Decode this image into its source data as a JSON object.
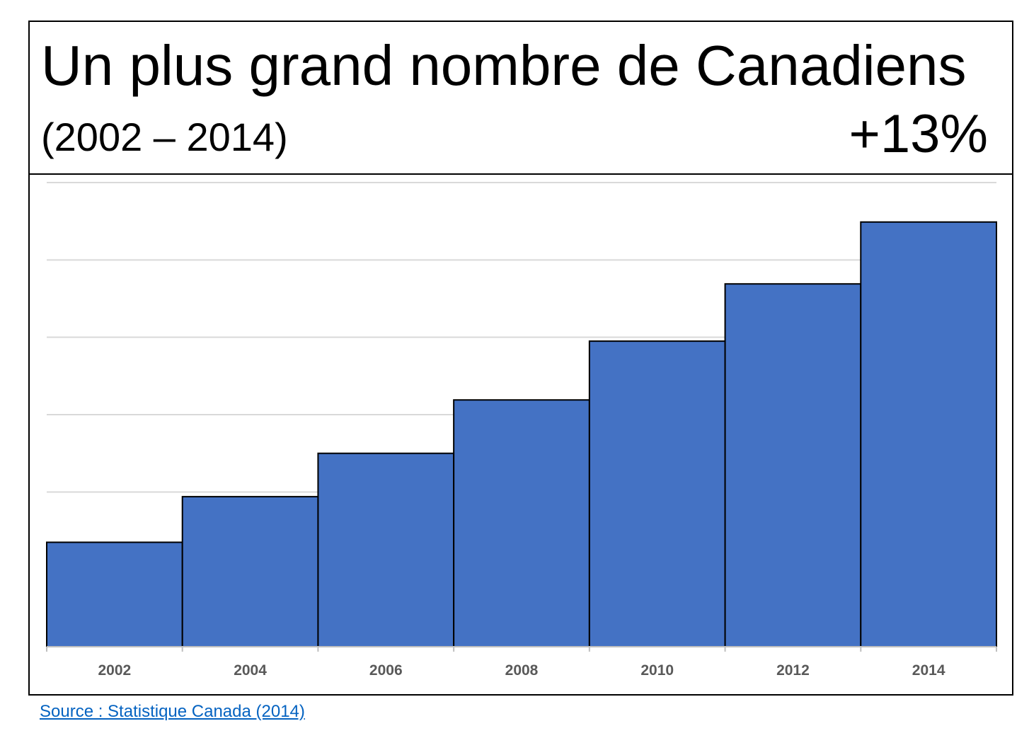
{
  "header": {
    "title": "Un plus grand nombre de Canadiens",
    "subtitle": "(2002 – 2014)",
    "change": "+13%"
  },
  "source": {
    "label": "Source : Statistique Canada (2014)"
  },
  "chart_data": {
    "type": "bar",
    "title": "Un plus grand nombre de Canadiens",
    "subtitle": "(2002 – 2014)",
    "categories": [
      "2002",
      "2004",
      "2006",
      "2008",
      "2010",
      "2012",
      "2014"
    ],
    "values": [
      1.35,
      1.94,
      2.5,
      3.19,
      3.95,
      4.69,
      5.49
    ],
    "ylim": [
      0,
      6
    ],
    "y_tick_labels_shown": false,
    "grid": true,
    "legend": "none",
    "colors": {
      "bar": "#4472c4",
      "bar_border": "#000000",
      "grid": "#d9d9d9",
      "tick_label": "#595959"
    },
    "xlabel": "",
    "ylabel": ""
  }
}
